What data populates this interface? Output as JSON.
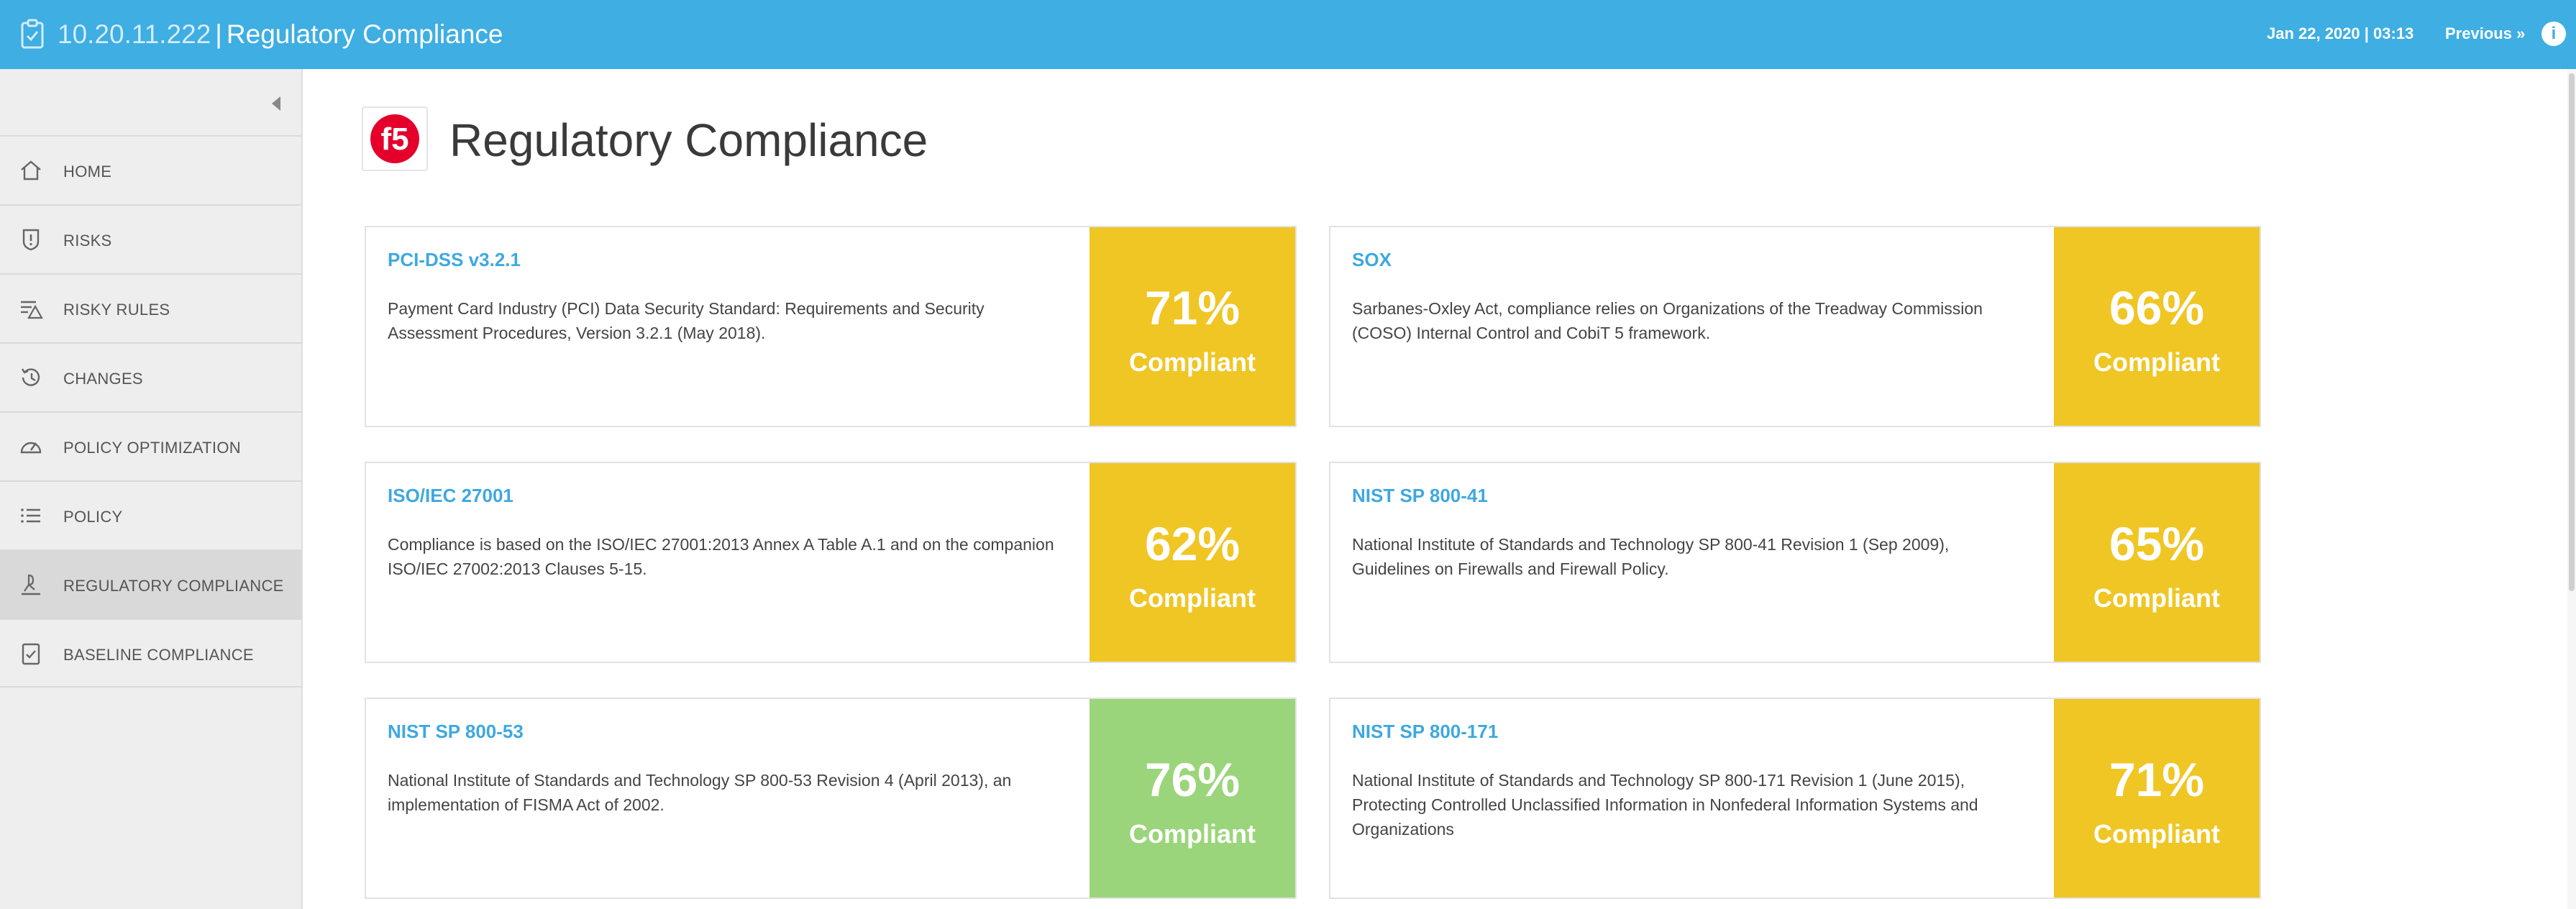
{
  "header": {
    "ip": "10.20.11.222",
    "separator": "|",
    "title": "Regulatory Compliance",
    "datetime": "Jan 22, 2020 | 03:13",
    "previous_label": "Previous",
    "previous_glyph": "»",
    "info_glyph": "i",
    "bar_color": "#3eaee3"
  },
  "sidebar": {
    "items": [
      {
        "label": "HOME",
        "icon": "home-icon"
      },
      {
        "label": "RISKS",
        "icon": "shield-alert-icon"
      },
      {
        "label": "RISKY RULES",
        "icon": "risky-rules-icon"
      },
      {
        "label": "CHANGES",
        "icon": "history-icon"
      },
      {
        "label": "POLICY OPTIMIZATION",
        "icon": "gauge-icon"
      },
      {
        "label": "POLICY",
        "icon": "list-icon"
      },
      {
        "label": "REGULATORY COMPLIANCE",
        "icon": "compliance-icon",
        "active": true
      },
      {
        "label": "BASELINE COMPLIANCE",
        "icon": "checklist-icon"
      }
    ]
  },
  "page": {
    "title": "Regulatory Compliance",
    "logo": "f5-logo"
  },
  "colors": {
    "yellow": "#efc624",
    "green": "#9bd57b",
    "link": "#3ea8e0"
  },
  "cards": [
    {
      "name": "PCI-DSS v3.2.1",
      "desc": "Payment Card Industry (PCI) Data Security Standard: Requirements and Security Assessment Procedures, Version 3.2.1 (May 2018).",
      "percent": "71%",
      "status": "Compliant",
      "level": "yellow"
    },
    {
      "name": "SOX",
      "desc": "Sarbanes-Oxley Act, compliance relies on Organizations of the Treadway Commission (COSO) Internal Control and CobiT 5 framework.",
      "percent": "66%",
      "status": "Compliant",
      "level": "yellow"
    },
    {
      "name": "ISO/IEC 27001",
      "desc": "Compliance is based on the ISO/IEC 27001:2013 Annex A Table A.1 and on the companion ISO/IEC 27002:2013 Clauses 5-15.",
      "percent": "62%",
      "status": "Compliant",
      "level": "yellow"
    },
    {
      "name": "NIST SP 800-41",
      "desc": "National Institute of Standards and Technology SP 800-41 Revision 1 (Sep 2009), Guidelines on Firewalls and Firewall Policy.",
      "percent": "65%",
      "status": "Compliant",
      "level": "yellow"
    },
    {
      "name": "NIST SP 800-53",
      "desc": "National Institute of Standards and Technology SP 800-53 Revision 4 (April 2013), an implementation of FISMA Act of 2002.",
      "percent": "76%",
      "status": "Compliant",
      "level": "green"
    },
    {
      "name": "NIST SP 800-171",
      "desc": "National Institute of Standards and Technology SP 800-171 Revision 1 (June 2015), Protecting Controlled Unclassified Information in Nonfederal Information Systems and Organizations",
      "percent": "71%",
      "status": "Compliant",
      "level": "yellow"
    }
  ]
}
